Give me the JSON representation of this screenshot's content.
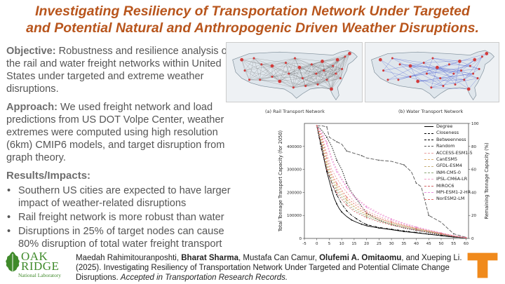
{
  "title": {
    "line1": "Investigating Resiliency of Transportation Network Under Targeted",
    "line2": "and Potential Natural and Anthropogenic Driven Weather Disruptions."
  },
  "objective": {
    "label": "Objective:",
    "text": " Robustness and resilience analysis of the rail and water freight networks within United States under targeted and extreme weather disruptions."
  },
  "approach": {
    "label": "Approach:",
    "text": " We used freight network and load predictions from US DOT Volpe Center, weather extremes were computed using high resolution (6km) CMIP6 models, and target disruption from graph theory."
  },
  "results": {
    "heading": "Results/Impacts:",
    "bullets": [
      "Southern US cities are expected to have larger impact of weather-related disruptions",
      "Rail freight network is more robust than water",
      "Disruptions in 25% of target nodes can cause 80% disruption of total water freight transport"
    ]
  },
  "panels": {
    "rail_caption": "(a) Rail Transport Network",
    "water_caption": "(b) Water Transport Network"
  },
  "chart_data": {
    "type": "line",
    "ylabel": "Total Tonnage Transport Capacity (for 2050)",
    "y2label": "Remaining Tonnage Capacity (%)",
    "xlim": [
      -5,
      61
    ],
    "ylim": [
      0,
      500000
    ],
    "y2lim": [
      0,
      100
    ],
    "xticks": [
      "-5",
      "0",
      "5",
      "10",
      "15",
      "20",
      "25",
      "30",
      "35",
      "40",
      "45",
      "50",
      "55",
      "60"
    ],
    "yticks": [
      "0",
      "100000",
      "200000",
      "300000",
      "400000"
    ],
    "y2ticks": [
      "0",
      "20",
      "40",
      "60",
      "80",
      "100"
    ],
    "legend_position": "top-right",
    "series": [
      {
        "name": "Degree",
        "color": "#000000",
        "dash": "",
        "x": [
          0,
          1,
          2,
          3,
          4,
          5,
          6,
          7,
          8,
          9,
          10,
          12,
          14,
          16,
          18,
          20,
          25,
          30,
          35,
          40,
          45,
          50,
          55,
          60
        ],
        "y": [
          490000,
          440000,
          400000,
          340000,
          290000,
          250000,
          210000,
          175000,
          150000,
          130000,
          115000,
          95000,
          80000,
          70000,
          62000,
          55000,
          45000,
          38000,
          30000,
          24000,
          18000,
          12000,
          6000,
          2000
        ]
      },
      {
        "name": "Closeness",
        "color": "#000000",
        "dash": "1.5,1.5",
        "x": [
          0,
          2,
          4,
          6,
          8,
          10,
          12,
          14,
          16,
          18,
          20,
          25,
          30,
          35,
          40,
          45,
          50,
          55,
          60
        ],
        "y": [
          490000,
          470000,
          440000,
          400000,
          340000,
          300000,
          240000,
          200000,
          170000,
          140000,
          110000,
          80000,
          60000,
          45000,
          35000,
          25000,
          15000,
          8000,
          2000
        ]
      },
      {
        "name": "Betweenness",
        "color": "#000000",
        "dash": "4,1.5,1,1.5",
        "x": [
          0,
          2,
          4,
          6,
          8,
          10,
          12,
          14,
          16,
          18,
          20,
          25,
          30,
          35,
          40,
          45,
          50,
          55,
          60
        ],
        "y": [
          490000,
          380000,
          300000,
          240000,
          190000,
          150000,
          120000,
          100000,
          85000,
          72000,
          60000,
          48000,
          40000,
          33000,
          26000,
          19000,
          12000,
          6000,
          2000
        ]
      },
      {
        "name": "Random",
        "color": "#555555",
        "dash": "5,2",
        "x": [
          0,
          2,
          4,
          5,
          8,
          10,
          12,
          15,
          18,
          20,
          25,
          30,
          35,
          38,
          40,
          42,
          45,
          50,
          55,
          60
        ],
        "y": [
          490000,
          490000,
          485000,
          440000,
          420000,
          410000,
          380000,
          370000,
          360000,
          350000,
          340000,
          335000,
          320000,
          290000,
          240000,
          225000,
          100000,
          70000,
          20000,
          5000
        ]
      },
      {
        "name": "ACCESS-ESM1-5",
        "color": "#e8a0a0",
        "dash": "2,2",
        "x": [
          0,
          2,
          4,
          6,
          8,
          10,
          12,
          15,
          20,
          25,
          30,
          35,
          40,
          45,
          50,
          55,
          60
        ],
        "y": [
          490000,
          450000,
          370000,
          300000,
          260000,
          230000,
          200000,
          160000,
          120000,
          95000,
          75000,
          60000,
          48000,
          36000,
          24000,
          12000,
          4000
        ]
      },
      {
        "name": "CanESM5",
        "color": "#e0b070",
        "dash": "2,2",
        "x": [
          0,
          2,
          4,
          6,
          8,
          10,
          12,
          15,
          20,
          25,
          30,
          35,
          40,
          45,
          50,
          55,
          60
        ],
        "y": [
          490000,
          430000,
          330000,
          270000,
          230000,
          200000,
          170000,
          140000,
          105000,
          85000,
          68000,
          55000,
          43000,
          32000,
          21000,
          11000,
          3000
        ]
      },
      {
        "name": "GFDL-ESM4",
        "color": "#c9b07a",
        "dash": "2,2",
        "x": [
          0,
          2,
          4,
          6,
          8,
          10,
          12,
          15,
          20,
          25,
          30,
          35,
          40,
          45,
          50,
          55,
          60
        ],
        "y": [
          490000,
          420000,
          320000,
          260000,
          220000,
          190000,
          165000,
          135000,
          100000,
          80000,
          64000,
          52000,
          41000,
          30000,
          20000,
          10000,
          3000
        ]
      },
      {
        "name": "INM-CM5-0",
        "color": "#8fa878",
        "dash": "2,2",
        "x": [
          0,
          2,
          4,
          6,
          8,
          10,
          12,
          15,
          20,
          25,
          30,
          35,
          40,
          45,
          50,
          55,
          60
        ],
        "y": [
          490000,
          410000,
          310000,
          250000,
          210000,
          180000,
          155000,
          125000,
          95000,
          76000,
          61000,
          50000,
          39000,
          29000,
          19000,
          9000,
          2500
        ]
      },
      {
        "name": "IPSL-CM6A-LR",
        "color": "#f0a0c8",
        "dash": "2,2",
        "x": [
          0,
          2,
          4,
          6,
          8,
          10,
          12,
          15,
          20,
          25,
          30,
          35,
          40,
          45,
          50,
          55,
          60
        ],
        "y": [
          490000,
          460000,
          420000,
          350000,
          300000,
          260000,
          225000,
          185000,
          140000,
          110000,
          85000,
          66000,
          50000,
          37000,
          24000,
          12000,
          4000
        ]
      },
      {
        "name": "MIROC6",
        "color": "#d06060",
        "dash": "2,2",
        "x": [
          0,
          2,
          4,
          6,
          8,
          10,
          12,
          15,
          20,
          25,
          30,
          35,
          40,
          45,
          50,
          55,
          60
        ],
        "y": [
          490000,
          400000,
          300000,
          240000,
          200000,
          170000,
          145000,
          118000,
          90000,
          72000,
          58000,
          47000,
          37000,
          27000,
          18000,
          9000,
          2500
        ]
      },
      {
        "name": "MPI-ESM1-2-HR",
        "color": "#e890e0",
        "dash": "2,2",
        "x": [
          0,
          2,
          4,
          6,
          8,
          10,
          12,
          15,
          20,
          25,
          30,
          35,
          40,
          45,
          50,
          55,
          60
        ],
        "y": [
          490000,
          455000,
          410000,
          340000,
          290000,
          255000,
          220000,
          180000,
          135000,
          105000,
          82000,
          64000,
          49000,
          36000,
          23000,
          11000,
          3500
        ]
      },
      {
        "name": "NorESM2-LM",
        "color": "#e06a6a",
        "dash": "2,2",
        "x": [
          0,
          2,
          4,
          6,
          8,
          10,
          12,
          15,
          20,
          25,
          30,
          35,
          40,
          45,
          50,
          55,
          60
        ],
        "y": [
          490000,
          440000,
          350000,
          280000,
          240000,
          210000,
          180000,
          150000,
          112000,
          88000,
          70000,
          56000,
          44000,
          33000,
          22000,
          11000,
          3000
        ]
      }
    ]
  },
  "citation": {
    "author1": "Maedah Rahimitouranposhti, ",
    "author2": "Bharat Sharma",
    "author3": ", Mustafa Can Camur, ",
    "author4": "Olufemi A. Omitaomu",
    "author5": ", and Xueping Li. (2025). Investigating Resiliency of Transportation Network Under Targeted and Potential Climate Change Disruptions. ",
    "journal": "Accepted in Transportation Research Records."
  },
  "logo": {
    "line1": "OAK",
    "line2": "RIDGE",
    "line3": "National Laboratory",
    "brand_color": "#3f8a2a"
  },
  "colors": {
    "title": "#b8551c",
    "tennessee_orange": "#f08a1c"
  }
}
